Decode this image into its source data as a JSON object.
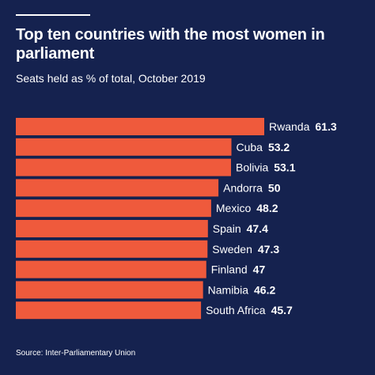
{
  "header": {
    "title": "Top ten countries with the most women in parliament",
    "subtitle": "Seats held as % of total, October 2019"
  },
  "footer": {
    "source": "Source: Inter-Parliamentary Union"
  },
  "colors": {
    "background": "#15224f",
    "bar": "#ef5a3c",
    "text": "#ffffff"
  },
  "chart_data": {
    "type": "bar",
    "orientation": "horizontal",
    "title": "Top ten countries with the most women in parliament",
    "subtitle": "Seats held as % of total, October 2019",
    "categories": [
      "Rwanda",
      "Cuba",
      "Bolivia",
      "Andorra",
      "Mexico",
      "Spain",
      "Sweden",
      "Finland",
      "Namibia",
      "South Africa"
    ],
    "values": [
      61.3,
      53.2,
      53.1,
      50,
      48.2,
      47.4,
      47.3,
      47,
      46.2,
      45.7
    ],
    "value_labels": [
      "61.3",
      "53.2",
      "53.1",
      "50",
      "48.2",
      "47.4",
      "47.3",
      "47",
      "46.2",
      "45.7"
    ],
    "xlim": [
      0,
      61.3
    ],
    "grid": false,
    "legend": "none"
  }
}
